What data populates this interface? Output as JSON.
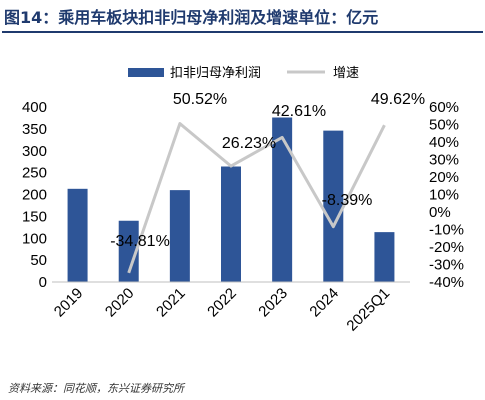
{
  "title": "图14：乘用车板块扣非归母净利润及增速单位：亿元",
  "source": "资料来源：同花顺，东兴证券研究所",
  "colors": {
    "bar": "#2e5597",
    "line": "#c8c8c8",
    "title": "#1f3a6e"
  },
  "chart_data": {
    "type": "bar",
    "categories": [
      "2019",
      "2020",
      "2021",
      "2022",
      "2023",
      "2024",
      "2025Q1"
    ],
    "series": [
      {
        "name": "扣非归母净利润",
        "type": "bar",
        "axis": "left",
        "values": [
          213,
          140,
          210,
          264,
          376,
          346,
          114
        ]
      },
      {
        "name": "增速",
        "type": "line",
        "axis": "right",
        "values": [
          null,
          -34.81,
          50.52,
          26.23,
          42.61,
          -8.39,
          49.62
        ]
      }
    ],
    "data_labels": [
      "",
      "-34.81%",
      "50.52%",
      "26.23%",
      "42.61%",
      "-8.39%",
      "49.62%"
    ],
    "left_axis": {
      "min": 0,
      "max": 400,
      "step": 50,
      "ticks": [
        "0",
        "50",
        "100",
        "150",
        "200",
        "250",
        "300",
        "350",
        "400"
      ]
    },
    "right_axis": {
      "min": -40,
      "max": 60,
      "step": 10,
      "ticks": [
        "-40%",
        "-30%",
        "-20%",
        "-10%",
        "0%",
        "10%",
        "20%",
        "30%",
        "40%",
        "50%",
        "60%"
      ]
    },
    "legend_position": "top",
    "grid": false
  }
}
